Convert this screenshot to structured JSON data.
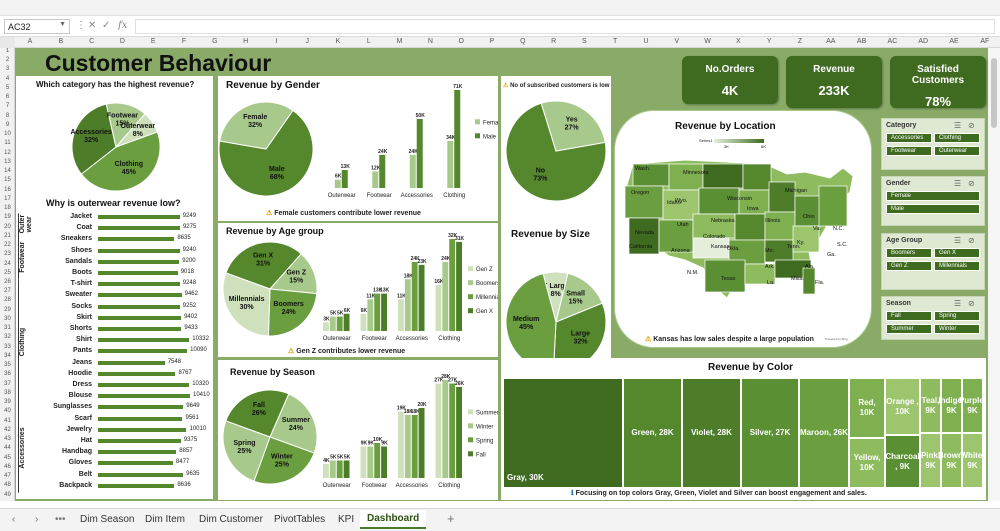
{
  "namebox": "AC32",
  "title": "Customer Behaviour",
  "kpis": [
    {
      "label": "No.Orders",
      "value": "4K"
    },
    {
      "label": "Revenue",
      "value": "233K"
    },
    {
      "label": "Satisfied Customers",
      "value": "78%"
    }
  ],
  "category_pie": {
    "title": "Which category has the highest revenue?",
    "slices": [
      {
        "name": "Clothing",
        "pct": 45,
        "label": "Clothing\n45%"
      },
      {
        "name": "Accessories",
        "pct": 32,
        "label": "Accessories\n32%"
      },
      {
        "name": "Footwear",
        "pct": 15,
        "label": "Footwear\n15%"
      },
      {
        "name": "Outerwear",
        "pct": 8,
        "label": "Outerwear\n8%"
      }
    ]
  },
  "outerwear": {
    "title": "Why is outerwear revenue low?",
    "groups": [
      {
        "name": "Outer wear",
        "items": [
          {
            "n": "Jacket",
            "v": 9249
          },
          {
            "n": "Coat",
            "v": 9275
          }
        ]
      },
      {
        "name": "Footwear",
        "items": [
          {
            "n": "Sneakers",
            "v": 8635
          },
          {
            "n": "Shoes",
            "v": 9240
          },
          {
            "n": "Sandals",
            "v": 9200
          },
          {
            "n": "Boots",
            "v": 9018
          }
        ]
      },
      {
        "name": "Clothing",
        "items": [
          {
            "n": "T-shirt",
            "v": 9248
          },
          {
            "n": "Sweater",
            "v": 9462
          },
          {
            "n": "Socks",
            "v": 9252
          },
          {
            "n": "Skirt",
            "v": 9402
          },
          {
            "n": "Shorts",
            "v": 9433
          },
          {
            "n": "Shirt",
            "v": 10332
          },
          {
            "n": "Pants",
            "v": 10090
          },
          {
            "n": "Jeans",
            "v": 7548
          },
          {
            "n": "Hoodie",
            "v": 8767
          },
          {
            "n": "Dress",
            "v": 10320
          },
          {
            "n": "Blouse",
            "v": 10410
          }
        ]
      },
      {
        "name": "Accessories",
        "items": [
          {
            "n": "Sunglasses",
            "v": 9649
          },
          {
            "n": "Scarf",
            "v": 9561
          },
          {
            "n": "Jewelry",
            "v": 10010
          },
          {
            "n": "Hat",
            "v": 9375
          },
          {
            "n": "Handbag",
            "v": 8857
          },
          {
            "n": "Gloves",
            "v": 8477
          },
          {
            "n": "Belt",
            "v": 9635
          },
          {
            "n": "Backpack",
            "v": 8636
          }
        ]
      }
    ]
  },
  "gender": {
    "title": "Revenue by Gender",
    "pie": [
      {
        "name": "Male",
        "pct": 68,
        "label": "Male\n68%"
      },
      {
        "name": "Female",
        "pct": 32,
        "label": "Female\n32%"
      }
    ],
    "categories": [
      "Outerwear",
      "Footwear",
      "Accessories",
      "Clothing"
    ],
    "series": [
      {
        "name": "Female",
        "values": [
          6,
          12,
          24,
          34
        ],
        "labels": [
          "6K",
          "12K",
          "24K",
          "34K"
        ]
      },
      {
        "name": "Male",
        "values": [
          13,
          24,
          50,
          71
        ],
        "labels": [
          "13K",
          "24K",
          "50K",
          "71K"
        ]
      }
    ],
    "note": "Female customers contribute lower revenue"
  },
  "age": {
    "title": "Revenue by Age group",
    "pie": [
      {
        "name": "Gen X",
        "pct": 31,
        "label": "Gen X\n31%"
      },
      {
        "name": "Gen Z",
        "pct": 15,
        "label": "Gen Z\n15%"
      },
      {
        "name": "Boomers",
        "pct": 24,
        "label": "Boomers\n24%"
      },
      {
        "name": "Millennials",
        "pct": 30,
        "label": "Millennials\n30%"
      }
    ],
    "categories": [
      "Outerwear",
      "Footwear",
      "Accessories",
      "Clothing"
    ],
    "series": [
      {
        "name": "Gen Z",
        "values": [
          3,
          6,
          11,
          16
        ],
        "labels": [
          "3K",
          "6K",
          "11K",
          "16K"
        ]
      },
      {
        "name": "Boomers",
        "values": [
          5,
          11,
          18,
          24
        ],
        "labels": [
          "5K",
          "11K",
          "18K",
          "24K"
        ]
      },
      {
        "name": "Millennials",
        "values": [
          5,
          13,
          24,
          32
        ],
        "labels": [
          "5K",
          "13K",
          "24K",
          "32K"
        ]
      },
      {
        "name": "Gen X",
        "values": [
          6,
          13,
          23,
          31
        ],
        "labels": [
          "6K",
          "13K",
          "23K",
          "31K"
        ]
      }
    ],
    "note": "Gen Z contributes lower revenue"
  },
  "season": {
    "title": "Revenue by Season",
    "pie": [
      {
        "name": "Fall",
        "pct": 26,
        "label": "Fall\n26%"
      },
      {
        "name": "Summer",
        "pct": 24,
        "label": "Summer\n24%"
      },
      {
        "name": "Winter",
        "pct": 25,
        "label": "Winter\n25%"
      },
      {
        "name": "Spring",
        "pct": 25,
        "label": "Spring\n25%"
      }
    ],
    "categories": [
      "Outerwear",
      "Footwear",
      "Accessories",
      "Clothing"
    ],
    "series": [
      {
        "name": "Summer",
        "values": [
          4,
          9,
          19,
          27
        ],
        "labels": [
          "4K",
          "9K",
          "19K",
          "27K"
        ]
      },
      {
        "name": "Winter",
        "values": [
          5,
          9,
          18,
          28
        ],
        "labels": [
          "5K",
          "9K",
          "18K",
          "28K"
        ]
      },
      {
        "name": "Spring",
        "values": [
          5,
          10,
          18,
          27
        ],
        "labels": [
          "5K",
          "10K",
          "18K",
          "27K"
        ]
      },
      {
        "name": "Fall",
        "values": [
          5,
          9,
          20,
          26
        ],
        "labels": [
          "5K",
          "9K",
          "20K",
          "26K"
        ]
      }
    ]
  },
  "subscribed": {
    "note": "No of subscribed customers is low",
    "pie": [
      {
        "name": "No",
        "pct": 73,
        "label": "No\n73%"
      },
      {
        "name": "Yes",
        "pct": 27,
        "label": "Yes\n27%"
      }
    ]
  },
  "size": {
    "title": "Revenue by Size",
    "pie": [
      {
        "name": "X Large",
        "pct": 8,
        "label": "X Large\n8%"
      },
      {
        "name": "Small",
        "pct": 15,
        "label": "Small\n15%"
      },
      {
        "name": "Large",
        "pct": 32,
        "label": "Large\n32%"
      },
      {
        "name": "Medium",
        "pct": 45,
        "label": "Medium\n45%"
      }
    ]
  },
  "location": {
    "title": "Revenue by Location",
    "legend_series": "Series1",
    "legend_min": "3K",
    "legend_max": "6K",
    "states": [
      "Wash.",
      "Minnesota",
      "Oregon",
      "Wisconsin",
      "Idaho",
      "Wyo.",
      "Michigan",
      "Iowa",
      "Nevada",
      "Utah",
      "Nebraska",
      "Ohio",
      "California",
      "Colorado",
      "Kansas",
      "Illinois",
      "Va.",
      "Okla.",
      "Arizona",
      "N.M.",
      "Texas",
      "La.",
      "Ala.",
      "Ga.",
      "Ky.",
      "Tenn.",
      "Fla.",
      "Mo.",
      "Ark.",
      "Miss.",
      "S.C.",
      "N.C."
    ],
    "note": "Kansas has low sales despite a large population",
    "credit": "Powered by Bing"
  },
  "color": {
    "title": "Revenue by Color",
    "cells": [
      "Gray, 30K",
      "Green, 28K",
      "Violet, 28K",
      "Silver, 27K",
      "Maroon, 26K",
      "Red, 10K",
      "Yellow, 10K",
      "Orange , 10K",
      "Charcoal , 9K",
      "Teal, 9K",
      "Pink, 9K",
      "Indigo, 9K",
      "Brown, 9K",
      "Purple, 9K",
      "White, 9K"
    ],
    "note": "Focusing on top colors Gray, Green, Violet and Silver can boost engagement and sales."
  },
  "slicers": [
    {
      "title": "Category",
      "items": [
        "Accessories",
        "Clothing",
        "Footwear",
        "Outerwear"
      ]
    },
    {
      "title": "Gender",
      "items": [
        "Female",
        "Male"
      ]
    },
    {
      "title": "Age Group",
      "items": [
        "Boomers",
        "Gen X",
        "Gen Z",
        "Millennials"
      ]
    },
    {
      "title": "Season",
      "items": [
        "Fall",
        "Spring",
        "Summer",
        "Winter"
      ]
    }
  ],
  "tabs": [
    "Dim Season",
    "Dim Item",
    "Dim Customer",
    "PivotTables",
    "KPI",
    "Dashboard"
  ],
  "active_tab": "Dashboard",
  "col_letters": [
    "A",
    "B",
    "C",
    "D",
    "E",
    "F",
    "G",
    "H",
    "I",
    "J",
    "K",
    "L",
    "M",
    "N",
    "O",
    "P",
    "Q",
    "R",
    "S",
    "T",
    "U",
    "V",
    "W",
    "X",
    "Y",
    "Z",
    "AA",
    "AB",
    "AC",
    "AD",
    "AE",
    "AF"
  ],
  "colors": {
    "dark": "#3f6b21",
    "mid": "#6a9e3f",
    "light": "#a8c98c",
    "pale": "#cfe0bc",
    "bg": "#8aab68"
  }
}
